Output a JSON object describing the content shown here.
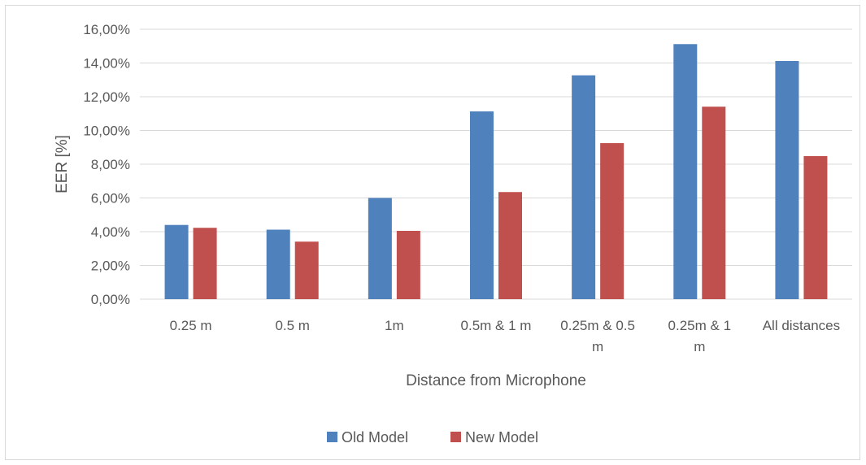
{
  "chart_data": {
    "type": "bar",
    "title": "",
    "xlabel": "Distance from Microphone",
    "ylabel": "EER  [%]",
    "categories": [
      [
        "0.25 m"
      ],
      [
        "0.5 m"
      ],
      [
        "1m"
      ],
      [
        "0.5m &  1 m"
      ],
      [
        "0.25m & 0.5",
        "m"
      ],
      [
        "0.25m &  1",
        "m"
      ],
      [
        "All distances"
      ]
    ],
    "series": [
      {
        "name": "Old Model",
        "color": "#4f81bd",
        "values": [
          4.4,
          4.12,
          6.0,
          11.13,
          13.27,
          15.12,
          14.12
        ]
      },
      {
        "name": "New Model",
        "color": "#c0504d",
        "values": [
          4.23,
          3.41,
          4.05,
          6.35,
          9.25,
          11.41,
          8.48
        ]
      }
    ],
    "ylim": [
      0,
      16
    ],
    "yticks": [
      "0,00%",
      "2,00%",
      "4,00%",
      "6,00%",
      "8,00%",
      "10,00%",
      "12,00%",
      "14,00%",
      "16,00%"
    ],
    "grid": true,
    "gridline_color": "#d9d9d9",
    "legend_position": "bottom"
  }
}
